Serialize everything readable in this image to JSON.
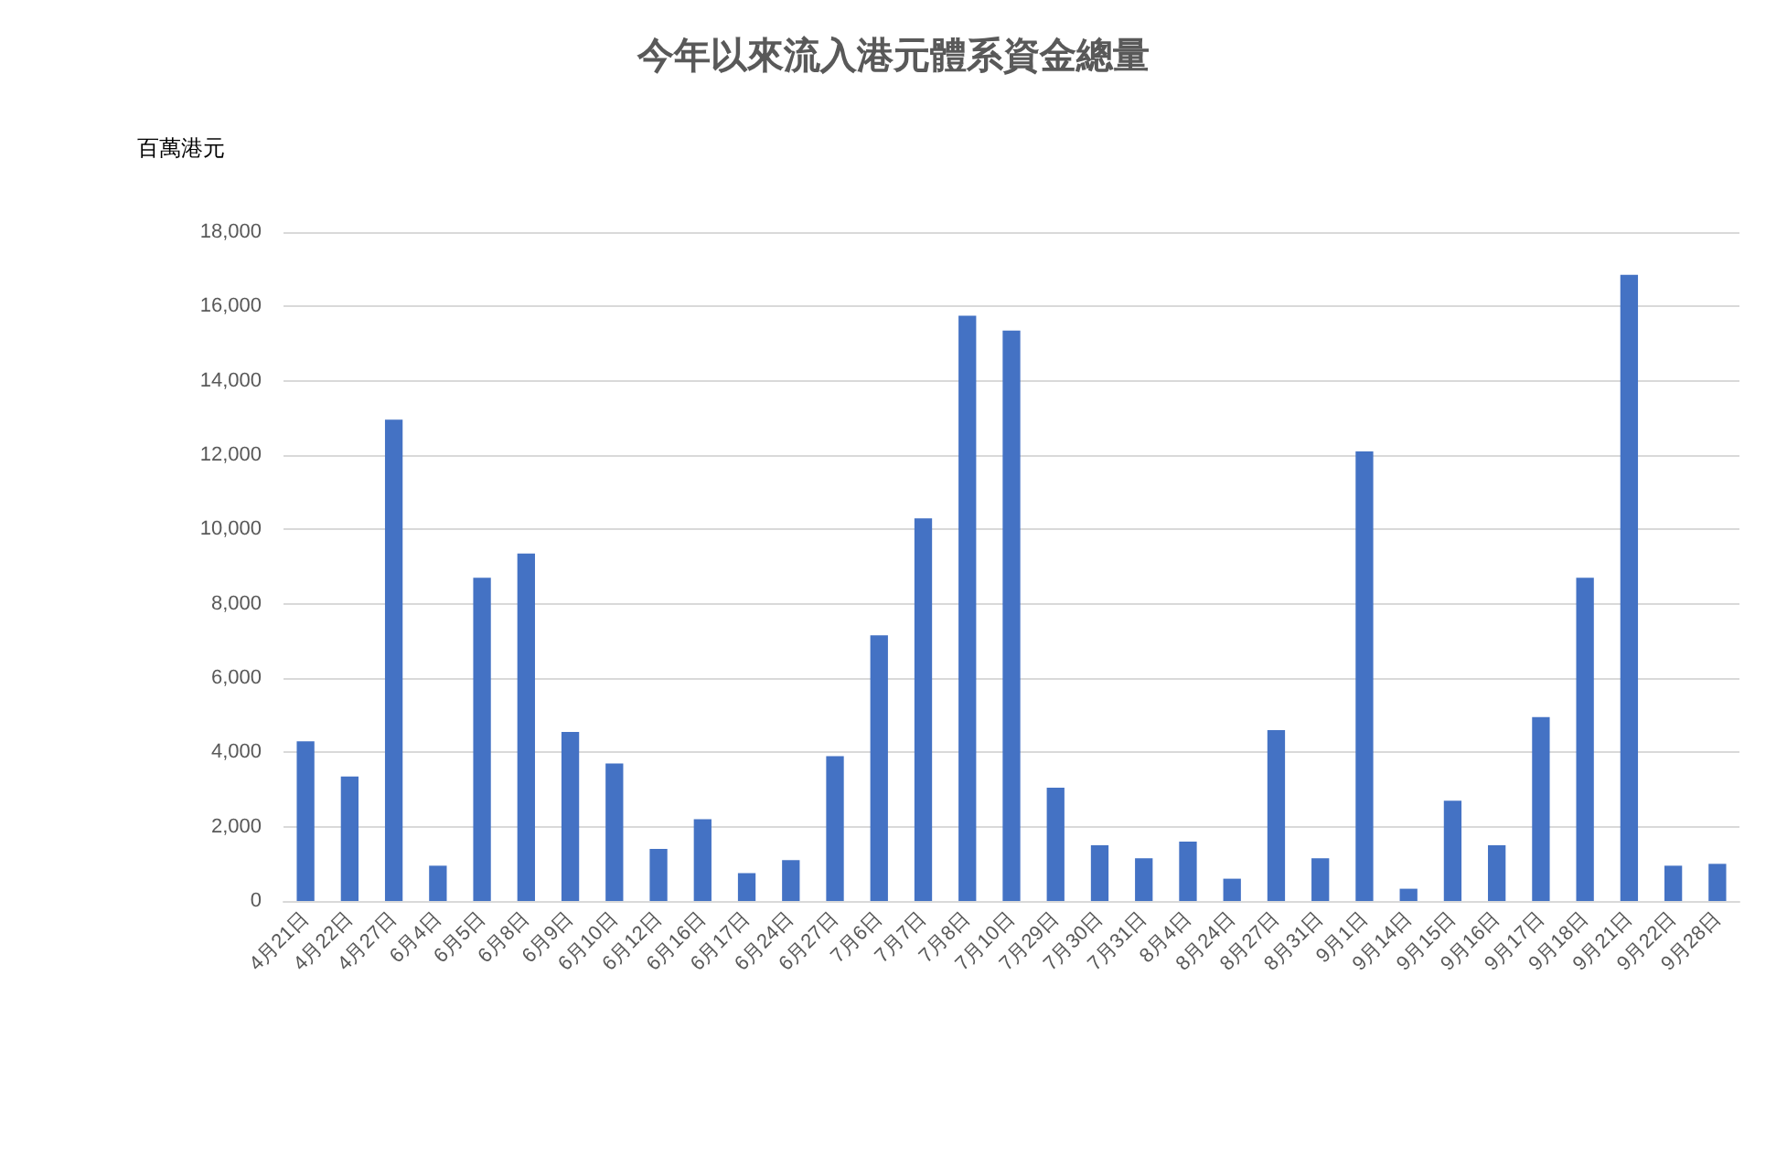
{
  "chart_data": {
    "type": "bar",
    "title": "今年以來流入港元體系資金總量",
    "ylabel": "百萬港元",
    "categories": [
      "4月21日",
      "4月22日",
      "4月27日",
      "6月4日",
      "6月5日",
      "6月8日",
      "6月9日",
      "6月10日",
      "6月12日",
      "6月16日",
      "6月17日",
      "6月24日",
      "6月27日",
      "7月6日",
      "7月7日",
      "7月8日",
      "7月10日",
      "7月29日",
      "7月30日",
      "7月31日",
      "8月4日",
      "8月24日",
      "8月27日",
      "8月31日",
      "9月1日",
      "9月14日",
      "9月15日",
      "9月16日",
      "9月17日",
      "9月18日",
      "9月21日",
      "9月22日",
      "9月28日"
    ],
    "values": [
      4300,
      3350,
      12950,
      950,
      8700,
      9350,
      4550,
      3700,
      1400,
      2200,
      750,
      1100,
      3900,
      7150,
      10300,
      15750,
      15350,
      3050,
      1500,
      1150,
      1600,
      600,
      4600,
      1150,
      12100,
      330,
      2700,
      1500,
      4950,
      8700,
      16850,
      950,
      1000
    ],
    "color": "#4472c4",
    "ylim": [
      0,
      18000
    ],
    "yticks": [
      0,
      {
        "value": 2000,
        "label": "2,000"
      },
      {
        "value": 4000,
        "label": "4,000"
      },
      {
        "value": 6000,
        "label": "6,000"
      },
      {
        "value": 8000,
        "label": "8,000"
      },
      {
        "value": 10000,
        "label": "10,000"
      },
      {
        "value": 12000,
        "label": "12,000"
      },
      {
        "value": 14000,
        "label": "14,000"
      },
      {
        "value": 16000,
        "label": "16,000"
      },
      {
        "value": 18000,
        "label": "18,000"
      }
    ],
    "grid": "y"
  }
}
